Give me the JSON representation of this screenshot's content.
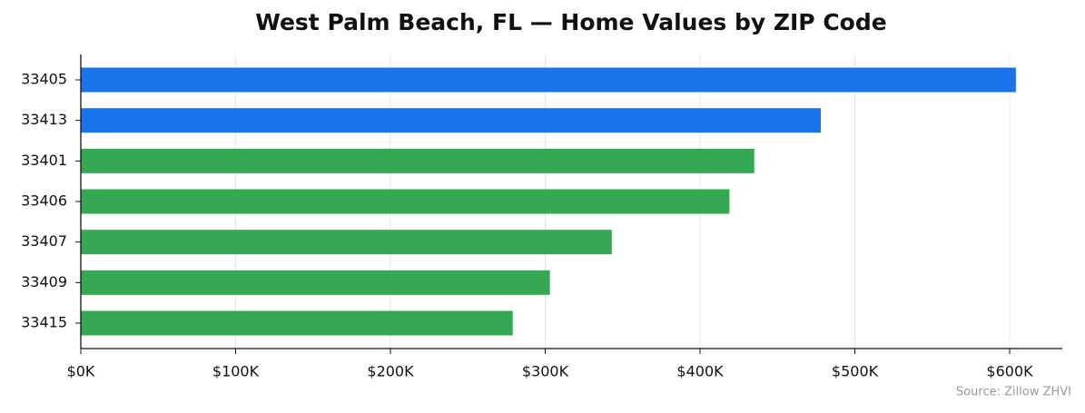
{
  "chart_data": {
    "type": "bar",
    "orientation": "horizontal",
    "title": "West Palm Beach, FL — Home Values by ZIP Code",
    "categories": [
      "33405",
      "33413",
      "33401",
      "33406",
      "33407",
      "33409",
      "33415"
    ],
    "values": [
      604000,
      478000,
      435000,
      419000,
      343000,
      303000,
      279000
    ],
    "colors": [
      "#1a73e8",
      "#1a73e8",
      "#34a853",
      "#34a853",
      "#34a853",
      "#34a853",
      "#34a853"
    ],
    "xlim": [
      0,
      634000
    ],
    "xticks": [
      {
        "value": 0,
        "label": "$0K"
      },
      {
        "value": 100000,
        "label": "$100K"
      },
      {
        "value": 200000,
        "label": "$200K"
      },
      {
        "value": 300000,
        "label": "$300K"
      },
      {
        "value": 400000,
        "label": "$400K"
      },
      {
        "value": 500000,
        "label": "$500K"
      },
      {
        "value": 600000,
        "label": "$600K"
      }
    ],
    "grid": true,
    "source": "Source: Zillow ZHVI"
  }
}
